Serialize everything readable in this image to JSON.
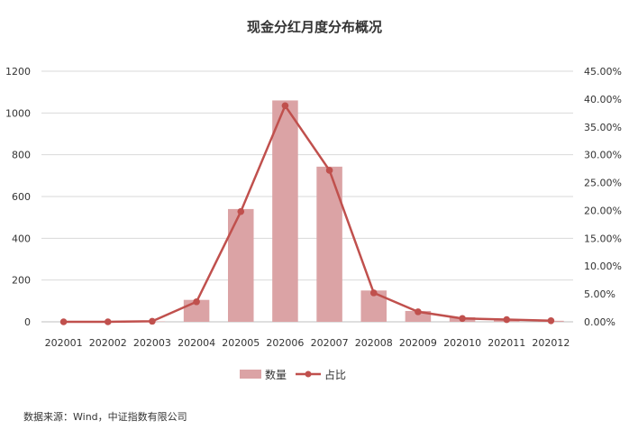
{
  "chart_data": {
    "type": "bar",
    "title": "现金分红月度分布概况",
    "categories": [
      "202001",
      "202002",
      "202003",
      "202004",
      "202005",
      "202006",
      "202007",
      "202008",
      "202009",
      "202010",
      "202011",
      "202012"
    ],
    "series": [
      {
        "name": "数量",
        "type": "bar",
        "axis": "left",
        "values": [
          0,
          0,
          2,
          105,
          540,
          1060,
          743,
          150,
          52,
          22,
          13,
          5
        ]
      },
      {
        "name": "占比",
        "type": "line",
        "axis": "right",
        "values": [
          0.0,
          0.0,
          0.1,
          3.6,
          19.8,
          38.8,
          27.2,
          5.2,
          1.8,
          0.6,
          0.4,
          0.2
        ]
      }
    ],
    "y_left": {
      "ylim": [
        0,
        1200
      ],
      "ticks": [
        "0",
        "200",
        "400",
        "600",
        "800",
        "1000",
        "1200"
      ]
    },
    "y_right": {
      "ylim": [
        0,
        45
      ],
      "ticks": [
        "0.00%",
        "5.00%",
        "10.00%",
        "15.00%",
        "20.00%",
        "25.00%",
        "30.00%",
        "35.00%",
        "40.00%",
        "45.00%"
      ]
    },
    "grid": true,
    "legend": "bottom-center",
    "colors": {
      "bar": "#dba3a5",
      "line": "#c0504d",
      "grid": "#d9d9d9",
      "axis": "#bfbfbf"
    }
  },
  "source_note": "数据来源：Wind，中证指数有限公司"
}
